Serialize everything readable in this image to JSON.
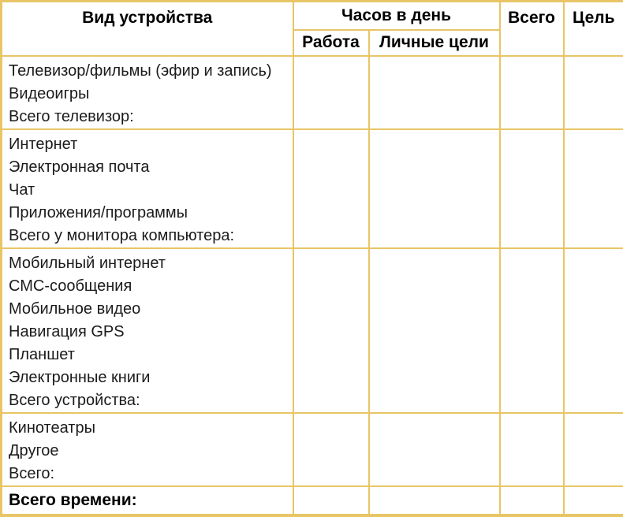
{
  "colors": {
    "border": "#E8C566",
    "body_text": "#1B1B1B",
    "header_text": "#000000",
    "background": "#FFFFFF"
  },
  "table": {
    "header": {
      "device_type": "Вид устройства",
      "hours_per_day": "Часов в день",
      "work": "Работа",
      "personal_goals": "Личные цели",
      "total": "Всего",
      "goal": "Цель"
    },
    "sections": [
      {
        "name": "tv",
        "lines": [
          "Телевизор/фильмы (эфир и запись)",
          "Видеоигры",
          "Всего телевизор:"
        ]
      },
      {
        "name": "computer",
        "lines": [
          "Интернет",
          "Электронная почта",
          "Чат",
          "Приложения/программы",
          "Всего у монитора компьютера:"
        ]
      },
      {
        "name": "mobile",
        "lines": [
          "Мобильный интернет",
          "СМС-сообщения",
          "Мобильное видео",
          "Навигация GPS",
          "Планшет",
          "Электронные книги",
          "Всего устройства:"
        ]
      },
      {
        "name": "other",
        "lines": [
          "Кинотеатры",
          "Другое",
          "Всего:"
        ]
      }
    ],
    "footer_label": "Всего времени:"
  }
}
